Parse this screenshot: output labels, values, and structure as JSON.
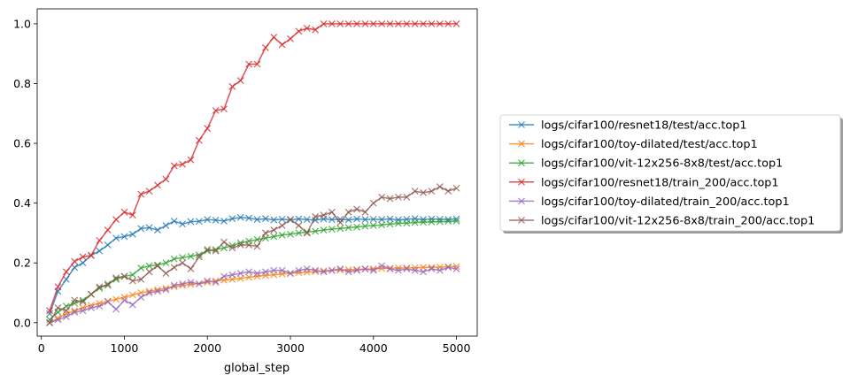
{
  "chart_data": {
    "type": "line",
    "title": "",
    "xlabel": "global_step",
    "ylabel": "",
    "xlim": [
      -50,
      5250
    ],
    "ylim": [
      -0.045,
      1.05
    ],
    "xticks": [
      0,
      1000,
      2000,
      3000,
      4000,
      5000
    ],
    "xtick_labels": [
      "0",
      "1000",
      "2000",
      "3000",
      "4000",
      "5000"
    ],
    "yticks": [
      0.0,
      0.2,
      0.4,
      0.6,
      0.8,
      1.0
    ],
    "ytick_labels": [
      "0.0",
      "0.2",
      "0.4",
      "0.6",
      "0.8",
      "1.0"
    ],
    "grid": false,
    "legend_position": "outside-right",
    "marker": "x",
    "series": [
      {
        "name": "logs/cifar100/resnet18/test/acc.top1",
        "color": "#1f77b4",
        "x": [
          100,
          200,
          300,
          400,
          500,
          600,
          700,
          800,
          900,
          1000,
          1100,
          1200,
          1300,
          1400,
          1500,
          1600,
          1700,
          1800,
          1900,
          2000,
          2100,
          2200,
          2300,
          2400,
          2500,
          2600,
          2700,
          2800,
          2900,
          3000,
          3100,
          3200,
          3300,
          3400,
          3500,
          3600,
          3700,
          3800,
          3900,
          4000,
          4100,
          4200,
          4300,
          4400,
          4500,
          4600,
          4700,
          4800,
          4900,
          5000
        ],
        "y": [
          0.03,
          0.105,
          0.145,
          0.185,
          0.2,
          0.225,
          0.24,
          0.26,
          0.283,
          0.288,
          0.296,
          0.315,
          0.318,
          0.31,
          0.325,
          0.34,
          0.33,
          0.338,
          0.339,
          0.345,
          0.343,
          0.34,
          0.348,
          0.352,
          0.35,
          0.345,
          0.348,
          0.344,
          0.346,
          0.344,
          0.347,
          0.345,
          0.343,
          0.347,
          0.345,
          0.346,
          0.344,
          0.347,
          0.345,
          0.346,
          0.345,
          0.347,
          0.344,
          0.346,
          0.348,
          0.345,
          0.347,
          0.346,
          0.345,
          0.347
        ]
      },
      {
        "name": "logs/cifar100/toy-dilated/test/acc.top1",
        "color": "#ff7f0e",
        "x": [
          100,
          200,
          300,
          400,
          500,
          600,
          700,
          800,
          900,
          1000,
          1100,
          1200,
          1300,
          1400,
          1500,
          1600,
          1700,
          1800,
          1900,
          2000,
          2100,
          2200,
          2300,
          2400,
          2500,
          2600,
          2700,
          2800,
          2900,
          3000,
          3100,
          3200,
          3300,
          3400,
          3500,
          3600,
          3700,
          3800,
          3900,
          4000,
          4100,
          4200,
          4300,
          4400,
          4500,
          4600,
          4700,
          4800,
          4900,
          5000
        ],
        "y": [
          0.0,
          0.015,
          0.03,
          0.04,
          0.05,
          0.058,
          0.065,
          0.072,
          0.078,
          0.085,
          0.093,
          0.1,
          0.105,
          0.11,
          0.115,
          0.12,
          0.125,
          0.128,
          0.13,
          0.135,
          0.14,
          0.142,
          0.145,
          0.148,
          0.152,
          0.155,
          0.158,
          0.16,
          0.163,
          0.165,
          0.167,
          0.169,
          0.171,
          0.173,
          0.175,
          0.176,
          0.177,
          0.178,
          0.179,
          0.18,
          0.181,
          0.182,
          0.183,
          0.183,
          0.184,
          0.185,
          0.185,
          0.186,
          0.187,
          0.188
        ]
      },
      {
        "name": "logs/cifar100/vit-12x256-8x8/test/acc.top1",
        "color": "#2ca02c",
        "x": [
          100,
          200,
          300,
          400,
          500,
          600,
          700,
          800,
          900,
          1000,
          1100,
          1200,
          1300,
          1400,
          1500,
          1600,
          1700,
          1800,
          1900,
          2000,
          2100,
          2200,
          2300,
          2400,
          2500,
          2600,
          2700,
          2800,
          2900,
          3000,
          3100,
          3200,
          3300,
          3400,
          3500,
          3600,
          3700,
          3800,
          3900,
          4000,
          4100,
          4200,
          4300,
          4400,
          4500,
          4600,
          4700,
          4800,
          4900,
          5000
        ],
        "y": [
          0.01,
          0.035,
          0.055,
          0.065,
          0.075,
          0.095,
          0.115,
          0.13,
          0.145,
          0.155,
          0.16,
          0.183,
          0.19,
          0.193,
          0.2,
          0.213,
          0.218,
          0.222,
          0.227,
          0.24,
          0.245,
          0.25,
          0.258,
          0.267,
          0.273,
          0.278,
          0.283,
          0.288,
          0.293,
          0.296,
          0.3,
          0.303,
          0.306,
          0.31,
          0.313,
          0.315,
          0.318,
          0.32,
          0.323,
          0.325,
          0.327,
          0.33,
          0.332,
          0.333,
          0.335,
          0.336,
          0.337,
          0.338,
          0.339,
          0.34
        ]
      },
      {
        "name": "logs/cifar100/resnet18/train_200/acc.top1",
        "color": "#d62728",
        "x": [
          100,
          200,
          300,
          400,
          500,
          600,
          700,
          800,
          900,
          1000,
          1100,
          1200,
          1300,
          1400,
          1500,
          1600,
          1700,
          1800,
          1900,
          2000,
          2100,
          2200,
          2300,
          2400,
          2500,
          2600,
          2700,
          2800,
          2900,
          3000,
          3100,
          3200,
          3300,
          3400,
          3500,
          3600,
          3700,
          3800,
          3900,
          4000,
          4100,
          4200,
          4300,
          4400,
          4500,
          4600,
          4700,
          4800,
          4900,
          5000
        ],
        "y": [
          0.04,
          0.12,
          0.17,
          0.205,
          0.22,
          0.225,
          0.275,
          0.31,
          0.345,
          0.37,
          0.36,
          0.43,
          0.44,
          0.46,
          0.48,
          0.525,
          0.53,
          0.545,
          0.61,
          0.65,
          0.71,
          0.715,
          0.79,
          0.81,
          0.865,
          0.865,
          0.92,
          0.955,
          0.93,
          0.95,
          0.975,
          0.985,
          0.98,
          1.0,
          1.0,
          1.0,
          1.0,
          1.0,
          1.0,
          1.0,
          1.0,
          1.0,
          1.0,
          1.0,
          1.0,
          1.0,
          1.0,
          1.0,
          1.0,
          1.0
        ]
      },
      {
        "name": "logs/cifar100/toy-dilated/train_200/acc.top1",
        "color": "#9467bd",
        "x": [
          100,
          200,
          300,
          400,
          500,
          600,
          700,
          800,
          900,
          1000,
          1100,
          1200,
          1300,
          1400,
          1500,
          1600,
          1700,
          1800,
          1900,
          2000,
          2100,
          2200,
          2300,
          2400,
          2500,
          2600,
          2700,
          2800,
          2900,
          3000,
          3100,
          3200,
          3300,
          3400,
          3500,
          3600,
          3700,
          3800,
          3900,
          4000,
          4100,
          4200,
          4300,
          4400,
          4500,
          4600,
          4700,
          4800,
          4900,
          5000
        ],
        "y": [
          0.0,
          0.01,
          0.02,
          0.035,
          0.04,
          0.05,
          0.055,
          0.07,
          0.045,
          0.075,
          0.06,
          0.085,
          0.1,
          0.105,
          0.11,
          0.125,
          0.13,
          0.135,
          0.13,
          0.14,
          0.135,
          0.155,
          0.16,
          0.165,
          0.17,
          0.165,
          0.17,
          0.175,
          0.175,
          0.165,
          0.175,
          0.18,
          0.175,
          0.17,
          0.175,
          0.18,
          0.17,
          0.175,
          0.18,
          0.175,
          0.19,
          0.18,
          0.175,
          0.18,
          0.175,
          0.17,
          0.18,
          0.175,
          0.185,
          0.18
        ]
      },
      {
        "name": "logs/cifar100/vit-12x256-8x8/train_200/acc.top1",
        "color": "#8c564b",
        "x": [
          100,
          200,
          300,
          400,
          500,
          600,
          700,
          800,
          900,
          1000,
          1100,
          1200,
          1300,
          1400,
          1500,
          1600,
          1700,
          1800,
          1900,
          2000,
          2100,
          2200,
          2300,
          2400,
          2500,
          2600,
          2700,
          2800,
          2900,
          3000,
          3100,
          3200,
          3300,
          3400,
          3500,
          3600,
          3700,
          3800,
          3900,
          4000,
          4100,
          4200,
          4300,
          4400,
          4500,
          4600,
          4700,
          4800,
          4900,
          5000
        ],
        "y": [
          0.0,
          0.05,
          0.04,
          0.075,
          0.07,
          0.095,
          0.12,
          0.125,
          0.15,
          0.155,
          0.14,
          0.145,
          0.17,
          0.19,
          0.165,
          0.185,
          0.2,
          0.18,
          0.22,
          0.245,
          0.24,
          0.27,
          0.25,
          0.26,
          0.26,
          0.255,
          0.3,
          0.31,
          0.325,
          0.345,
          0.325,
          0.3,
          0.355,
          0.36,
          0.37,
          0.335,
          0.37,
          0.38,
          0.37,
          0.4,
          0.42,
          0.415,
          0.42,
          0.42,
          0.44,
          0.435,
          0.44,
          0.455,
          0.44,
          0.45
        ]
      }
    ]
  }
}
